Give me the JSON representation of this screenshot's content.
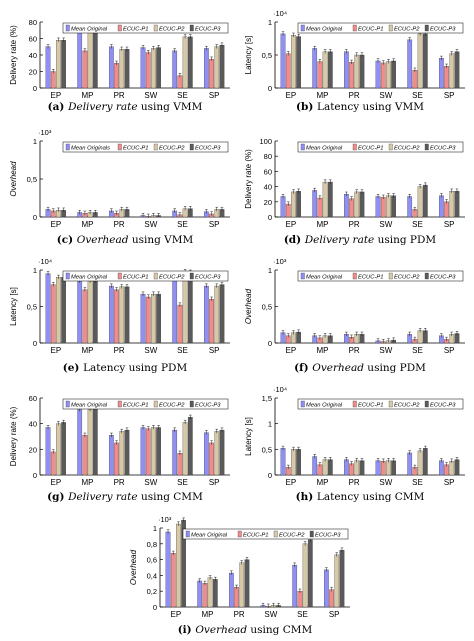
{
  "colors": {
    "series": [
      "#8f8ff6",
      "#f28c8c",
      "#d8c9a6",
      "#5a5a5a"
    ],
    "axis": "#000000",
    "caption": "#000000"
  },
  "chart_data": [
    {
      "type": "bar",
      "label": "(a)",
      "caption_parts": [
        "(a) ",
        "Delivery rate",
        " using VMM"
      ],
      "caption_italic": [
        false,
        true,
        false
      ],
      "ylabel": "Delivery rate (%)",
      "ylabel_italic": false,
      "exponent": "",
      "ylim": [
        0,
        80
      ],
      "yticks": [
        0,
        20,
        40,
        60,
        80
      ],
      "ytick_labels": [
        "0",
        "20",
        "40",
        "60",
        "80"
      ],
      "categories": [
        "EP",
        "MP",
        "PR",
        "SW",
        "SE",
        "SP"
      ],
      "series": [
        {
          "name": "Mean Original",
          "values": [
            50,
            72,
            50,
            49,
            45,
            48
          ]
        },
        {
          "name": "ECUC-P1",
          "values": [
            20,
            45,
            30,
            43,
            15,
            35
          ]
        },
        {
          "name": "ECUC-P2",
          "values": [
            58,
            76,
            47,
            48,
            62,
            50
          ]
        },
        {
          "name": "ECUC-P3",
          "values": [
            58,
            75,
            47,
            49,
            62,
            52
          ]
        }
      ]
    },
    {
      "type": "bar",
      "label": "(b)",
      "caption_parts": [
        "(b) ",
        "Latency using VMM",
        ""
      ],
      "caption_italic": [
        false,
        false,
        false
      ],
      "ylabel": "Latency [s]",
      "ylabel_italic": false,
      "exponent": "·10⁴",
      "ylim": [
        0,
        1
      ],
      "yticks": [
        0,
        0.5,
        1
      ],
      "ytick_labels": [
        "0",
        "0,5",
        "1"
      ],
      "categories": [
        "EP",
        "MP",
        "PR",
        "SW",
        "SE",
        "SP"
      ],
      "series": [
        {
          "name": "Mean Original",
          "values": [
            0.82,
            0.6,
            0.55,
            0.41,
            0.73,
            0.45
          ]
        },
        {
          "name": "ECUC-P1",
          "values": [
            0.52,
            0.4,
            0.39,
            0.38,
            0.27,
            0.33
          ]
        },
        {
          "name": "ECUC-P2",
          "values": [
            0.8,
            0.55,
            0.5,
            0.4,
            0.82,
            0.52
          ]
        },
        {
          "name": "ECUC-P3",
          "values": [
            0.78,
            0.55,
            0.5,
            0.41,
            0.82,
            0.55
          ]
        }
      ]
    },
    {
      "type": "bar",
      "label": "(c)",
      "caption_parts": [
        "(c) ",
        "Overhead",
        " using VMM"
      ],
      "caption_italic": [
        false,
        true,
        false
      ],
      "ylabel": "Overhead",
      "ylabel_italic": true,
      "exponent": "·10³",
      "ylim": [
        0,
        1
      ],
      "yticks": [
        0,
        0.5,
        1
      ],
      "ytick_labels": [
        "0",
        "0,5",
        "1"
      ],
      "categories": [
        "EP",
        "MP",
        "PR",
        "SW",
        "SE",
        "SP"
      ],
      "series": [
        {
          "name": "Mean Originals",
          "values": [
            0.1,
            0.06,
            0.08,
            0.02,
            0.08,
            0.07
          ]
        },
        {
          "name": "ECUC-P1",
          "values": [
            0.08,
            0.05,
            0.05,
            0.01,
            0.03,
            0.04
          ]
        },
        {
          "name": "ECUC-P2",
          "values": [
            0.09,
            0.06,
            0.1,
            0.02,
            0.11,
            0.1
          ]
        },
        {
          "name": "ECUC-P3",
          "values": [
            0.09,
            0.06,
            0.1,
            0.02,
            0.11,
            0.1
          ]
        }
      ]
    },
    {
      "type": "bar",
      "label": "(d)",
      "caption_parts": [
        "(d) ",
        "Delivery rate",
        " using PDM"
      ],
      "caption_italic": [
        false,
        true,
        false
      ],
      "ylabel": "Delivery rate (%)",
      "ylabel_italic": false,
      "exponent": "",
      "ylim": [
        0,
        100
      ],
      "yticks": [
        0,
        20,
        40,
        60,
        80,
        100
      ],
      "ytick_labels": [
        "0",
        "20",
        "40",
        "60",
        "80",
        "100"
      ],
      "categories": [
        "EP",
        "MP",
        "PR",
        "SW",
        "SE",
        "SP"
      ],
      "series": [
        {
          "name": "Mean Original",
          "values": [
            27,
            35,
            30,
            27,
            27,
            28
          ]
        },
        {
          "name": "ECUC-P1",
          "values": [
            17,
            25,
            24,
            26,
            10,
            20
          ]
        },
        {
          "name": "ECUC-P2",
          "values": [
            33,
            46,
            33,
            28,
            40,
            34
          ]
        },
        {
          "name": "ECUC-P3",
          "values": [
            34,
            46,
            33,
            28,
            42,
            34
          ]
        }
      ]
    },
    {
      "type": "bar",
      "label": "(e)",
      "caption_parts": [
        "(e) ",
        "Latency using PDM",
        ""
      ],
      "caption_italic": [
        false,
        false,
        false
      ],
      "ylabel": "Latency [s]",
      "ylabel_italic": false,
      "exponent": "·10⁴",
      "ylim": [
        0,
        1
      ],
      "yticks": [
        0,
        0.5,
        1
      ],
      "ytick_labels": [
        "0",
        "0,5",
        "1"
      ],
      "categories": [
        "EP",
        "MP",
        "PR",
        "SW",
        "SE",
        "SP"
      ],
      "series": [
        {
          "name": "Mean Original",
          "values": [
            0.95,
            0.85,
            0.78,
            0.67,
            0.88,
            0.78
          ]
        },
        {
          "name": "ECUC-P1",
          "values": [
            0.8,
            0.73,
            0.73,
            0.63,
            0.52,
            0.6
          ]
        },
        {
          "name": "ECUC-P2",
          "values": [
            0.9,
            0.85,
            0.77,
            0.67,
            0.98,
            0.78
          ]
        },
        {
          "name": "ECUC-P3",
          "values": [
            0.9,
            0.85,
            0.77,
            0.67,
            0.97,
            0.8
          ]
        }
      ]
    },
    {
      "type": "bar",
      "label": "(f)",
      "caption_parts": [
        "(f) ",
        "Overhead",
        " using PDM"
      ],
      "caption_italic": [
        false,
        true,
        false
      ],
      "ylabel": "Overhead",
      "ylabel_italic": true,
      "exponent": "·10³",
      "ylim": [
        0,
        1
      ],
      "yticks": [
        0,
        0.5,
        1
      ],
      "ytick_labels": [
        "0",
        "0,5",
        "1"
      ],
      "categories": [
        "EP",
        "MP",
        "PR",
        "SW",
        "SE",
        "SP"
      ],
      "series": [
        {
          "name": "Mean Original",
          "values": [
            0.14,
            0.1,
            0.12,
            0.03,
            0.12,
            0.1
          ]
        },
        {
          "name": "ECUC-P1",
          "values": [
            0.1,
            0.07,
            0.08,
            0.02,
            0.05,
            0.05
          ]
        },
        {
          "name": "ECUC-P2",
          "values": [
            0.14,
            0.1,
            0.12,
            0.03,
            0.17,
            0.12
          ]
        },
        {
          "name": "ECUC-P3",
          "values": [
            0.15,
            0.1,
            0.12,
            0.04,
            0.17,
            0.13
          ]
        }
      ]
    },
    {
      "type": "bar",
      "label": "(g)",
      "caption_parts": [
        "(g) ",
        "Delivery rate",
        " using CMM"
      ],
      "caption_italic": [
        false,
        true,
        false
      ],
      "ylabel": "Delivery rate (%)",
      "ylabel_italic": false,
      "exponent": "",
      "ylim": [
        0,
        60
      ],
      "yticks": [
        0,
        20,
        40,
        60
      ],
      "ytick_labels": [
        "0",
        "20",
        "40",
        "60"
      ],
      "categories": [
        "EP",
        "MP",
        "PR",
        "SW",
        "SE",
        "SP"
      ],
      "series": [
        {
          "name": "Mean Original",
          "values": [
            37,
            51,
            31,
            37,
            35,
            33
          ]
        },
        {
          "name": "ECUC-P1",
          "values": [
            18,
            31,
            25,
            36,
            17,
            25
          ]
        },
        {
          "name": "ECUC-P2",
          "values": [
            40,
            51,
            34,
            37,
            41,
            34
          ]
        },
        {
          "name": "ECUC-P3",
          "values": [
            41,
            53,
            35,
            37,
            45,
            35
          ]
        }
      ]
    },
    {
      "type": "bar",
      "label": "(h)",
      "caption_parts": [
        "(h) ",
        "Latency using CMM",
        ""
      ],
      "caption_italic": [
        false,
        false,
        false
      ],
      "ylabel": "Latency [s]",
      "ylabel_italic": false,
      "exponent": "·10⁴",
      "ylim": [
        0,
        1.5
      ],
      "yticks": [
        0,
        0.5,
        1,
        1.5
      ],
      "ytick_labels": [
        "0",
        "0,5",
        "1",
        "1,5"
      ],
      "categories": [
        "EP",
        "MP",
        "PR",
        "SW",
        "SE",
        "SP"
      ],
      "series": [
        {
          "name": "Mean Original",
          "values": [
            0.52,
            0.36,
            0.3,
            0.28,
            0.43,
            0.28
          ]
        },
        {
          "name": "ECUC-P1",
          "values": [
            0.15,
            0.2,
            0.22,
            0.27,
            0.15,
            0.2
          ]
        },
        {
          "name": "ECUC-P2",
          "values": [
            0.5,
            0.3,
            0.28,
            0.28,
            0.47,
            0.27
          ]
        },
        {
          "name": "ECUC-P3",
          "values": [
            0.5,
            0.3,
            0.28,
            0.28,
            0.52,
            0.3
          ]
        }
      ]
    },
    {
      "type": "bar",
      "label": "(i)",
      "caption_parts": [
        "(i) ",
        "Overhead",
        " using CMM"
      ],
      "caption_italic": [
        false,
        true,
        false
      ],
      "ylabel": "Overhead",
      "ylabel_italic": true,
      "exponent": "·10³",
      "ylim": [
        0,
        1
      ],
      "yticks": [
        0,
        0.2,
        0.4,
        0.6,
        0.8,
        1
      ],
      "ytick_labels": [
        "0",
        "0,2",
        "0,4",
        "0,6",
        "0,8",
        "1"
      ],
      "categories": [
        "EP",
        "MP",
        "PR",
        "SW",
        "SE",
        "SP"
      ],
      "series": [
        {
          "name": "Mean Original",
          "values": [
            0.95,
            0.33,
            0.43,
            0.02,
            0.53,
            0.47
          ]
        },
        {
          "name": "ECUC-P1",
          "values": [
            0.68,
            0.3,
            0.25,
            0.01,
            0.2,
            0.22
          ]
        },
        {
          "name": "ECUC-P2",
          "values": [
            1.05,
            0.37,
            0.56,
            0.02,
            0.8,
            0.66
          ]
        },
        {
          "name": "ECUC-P3",
          "values": [
            1.1,
            0.35,
            0.6,
            0.02,
            0.85,
            0.72
          ]
        }
      ]
    }
  ]
}
